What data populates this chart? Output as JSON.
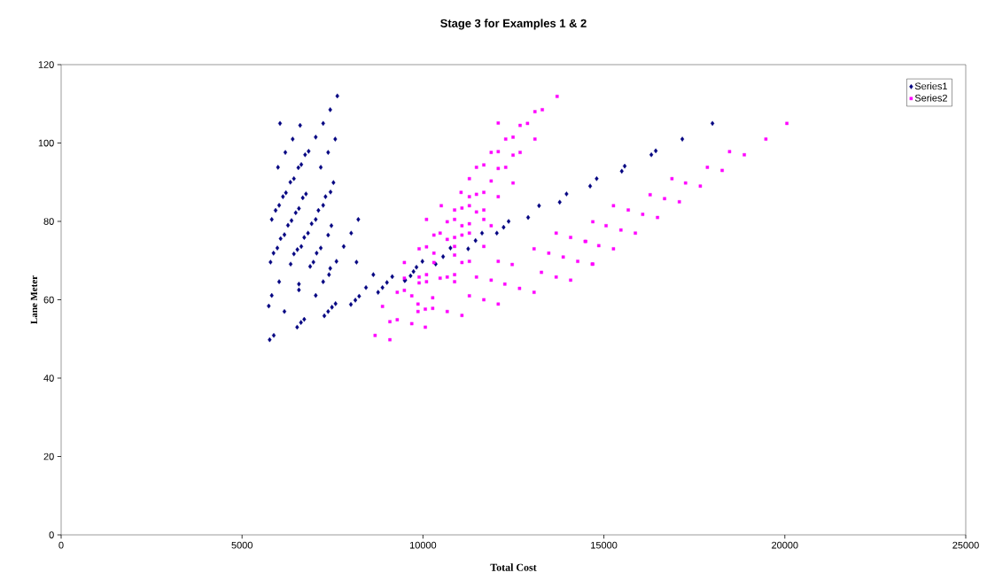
{
  "chart_data": {
    "type": "scatter",
    "title": "Stage 3 for Examples 1 & 2",
    "xlabel": "Total Cost",
    "ylabel": "Lane Meter",
    "xlim": [
      0,
      25000
    ],
    "ylim": [
      0,
      120
    ],
    "xticks": [
      0,
      5000,
      10000,
      15000,
      20000,
      25000
    ],
    "yticks": [
      0,
      20,
      40,
      60,
      80,
      100,
      120
    ],
    "legend": "top right",
    "series": [
      {
        "name": "Series1",
        "color": "#000080",
        "marker": "diamond",
        "x": [
          7633,
          7437,
          6049,
          6605,
          7242,
          6399,
          7036,
          7575,
          6196,
          6742,
          6840,
          7379,
          5993,
          6556,
          6637,
          7176,
          6335,
          6433,
          7526,
          6130,
          6213,
          6678,
          6767,
          7306,
          7445,
          5927,
          6025,
          6483,
          6571,
          7110,
          7242,
          5821,
          8212,
          6269,
          6367,
          6923,
          7036,
          7469,
          6066,
          6171,
          6718,
          6823,
          7379,
          8016,
          5870,
          5975,
          6433,
          6529,
          6637,
          7061,
          7176,
          7810,
          5787,
          6343,
          6882,
          6972,
          7609,
          8163,
          7437,
          7403,
          8628,
          6025,
          6571,
          6571,
          7242,
          5821,
          7036,
          5738,
          6171,
          6522,
          6628,
          6718,
          7274,
          7379,
          7485,
          7584,
          8008,
          8131,
          8236,
          8425,
          5763,
          5877,
          8760,
          8881,
          9004,
          9151,
          9510,
          9656,
          9820,
          9494,
          9739,
          9984,
          10352,
          10556,
          10759,
          11249,
          11453,
          11632,
          12041,
          12228,
          12367,
          12906,
          13208,
          13779,
          13967,
          14620,
          14800,
          15494,
          15575,
          16311,
          16433,
          17167,
          18000
        ],
        "values": [
          112.0,
          108.5,
          105.0,
          104.5,
          105.0,
          101.0,
          101.5,
          101.0,
          97.6,
          97.0,
          97.9,
          97.6,
          93.8,
          93.7,
          94.5,
          93.8,
          90.0,
          90.9,
          89.9,
          86.3,
          87.3,
          86.0,
          87.0,
          86.3,
          87.5,
          82.8,
          84.1,
          82.2,
          83.3,
          82.8,
          84.1,
          80.5,
          80.5,
          79.0,
          80.2,
          79.4,
          80.5,
          78.9,
          75.6,
          76.6,
          75.9,
          77.0,
          76.5,
          77.0,
          71.9,
          73.2,
          71.7,
          72.8,
          73.6,
          71.9,
          73.2,
          73.6,
          69.6,
          69.1,
          68.5,
          69.6,
          69.8,
          69.6,
          68.0,
          66.4,
          66.4,
          64.6,
          64.0,
          62.5,
          64.6,
          61.1,
          61.1,
          58.4,
          57.0,
          53.0,
          54.2,
          55.0,
          55.9,
          57.0,
          58.1,
          59.0,
          58.8,
          59.9,
          60.9,
          63.1,
          49.8,
          50.9,
          61.9,
          63.1,
          64.4,
          65.9,
          65.0,
          66.1,
          68.3,
          64.9,
          67.2,
          69.8,
          69.1,
          71.0,
          73.2,
          73.0,
          75.1,
          77.0,
          77.0,
          78.5,
          80.0,
          81.0,
          84.0,
          84.9,
          87.0,
          89.0,
          90.9,
          92.8,
          94.1,
          97.0,
          98.0,
          101.0,
          105.0
        ]
      },
      {
        "name": "Series2",
        "color": "#ff00ff",
        "marker": "square",
        "x": [
          20057,
          19477,
          18473,
          18881,
          17860,
          18269,
          16881,
          17257,
          17665,
          16278,
          16677,
          17085,
          15265,
          15674,
          16073,
          16482,
          14694,
          15061,
          15470,
          15870,
          14498,
          14858,
          15265,
          14694,
          13707,
          13094,
          13298,
          12080,
          12685,
          12889,
          12286,
          12490,
          13094,
          11885,
          12080,
          12490,
          12685,
          11478,
          11682,
          12080,
          12286,
          12490,
          11282,
          11478,
          11682,
          11885,
          12080,
          11053,
          11077,
          11282,
          11282,
          10506,
          10874,
          11478,
          11682,
          10098,
          10670,
          10874,
          11077,
          11282,
          11682,
          11885,
          10302,
          10474,
          11077,
          11282,
          9894,
          10098,
          10670,
          10874,
          10302,
          10874,
          10874,
          11682,
          9486,
          10302,
          11077,
          11282,
          12080,
          12466,
          13070,
          13477,
          13876,
          14277,
          14677,
          13681,
          14081,
          14481,
          9894,
          10098,
          9894,
          10098,
          10474,
          10670,
          10874,
          10874,
          11478,
          11885,
          12262,
          12669,
          13070,
          13274,
          13681,
          14081,
          11282,
          11682,
          12080,
          9289,
          9486,
          9690,
          10269,
          9862,
          9862,
          10065,
          10269,
          10670,
          11077,
          9086,
          9289,
          9690,
          10065,
          9086,
          8677,
          8881,
          9486
        ],
        "values": [
          105.0,
          101.0,
          97.8,
          97.0,
          93.8,
          93.0,
          90.9,
          89.8,
          89.0,
          86.8,
          85.8,
          85.0,
          84.0,
          82.9,
          81.8,
          81.0,
          79.9,
          78.9,
          77.8,
          77.0,
          74.9,
          73.8,
          73.0,
          69.1,
          111.9,
          108.0,
          108.5,
          105.1,
          104.5,
          105.0,
          101.0,
          101.5,
          101.0,
          97.6,
          97.8,
          96.9,
          97.6,
          93.8,
          94.4,
          93.5,
          93.8,
          89.8,
          90.9,
          86.9,
          87.4,
          90.3,
          86.3,
          87.4,
          83.4,
          84.0,
          86.3,
          84.0,
          82.9,
          82.4,
          82.9,
          80.5,
          79.9,
          80.5,
          78.9,
          79.4,
          80.5,
          78.9,
          76.5,
          77.0,
          76.5,
          77.0,
          73.0,
          73.5,
          75.4,
          75.9,
          71.9,
          73.6,
          71.4,
          73.6,
          69.5,
          69.5,
          69.5,
          69.8,
          69.8,
          69.0,
          73.0,
          71.9,
          70.9,
          69.8,
          69.1,
          77.0,
          75.9,
          74.9,
          65.8,
          66.4,
          64.3,
          64.6,
          65.5,
          65.8,
          66.4,
          64.6,
          65.8,
          65.0,
          64.0,
          62.9,
          61.9,
          67.0,
          65.8,
          65.0,
          61.0,
          60.0,
          58.9,
          61.9,
          62.4,
          61.0,
          60.5,
          58.9,
          57.0,
          57.6,
          57.8,
          57.0,
          56.0,
          54.4,
          54.9,
          53.9,
          53.0,
          49.8,
          50.9,
          58.3,
          65.5
        ]
      }
    ]
  }
}
